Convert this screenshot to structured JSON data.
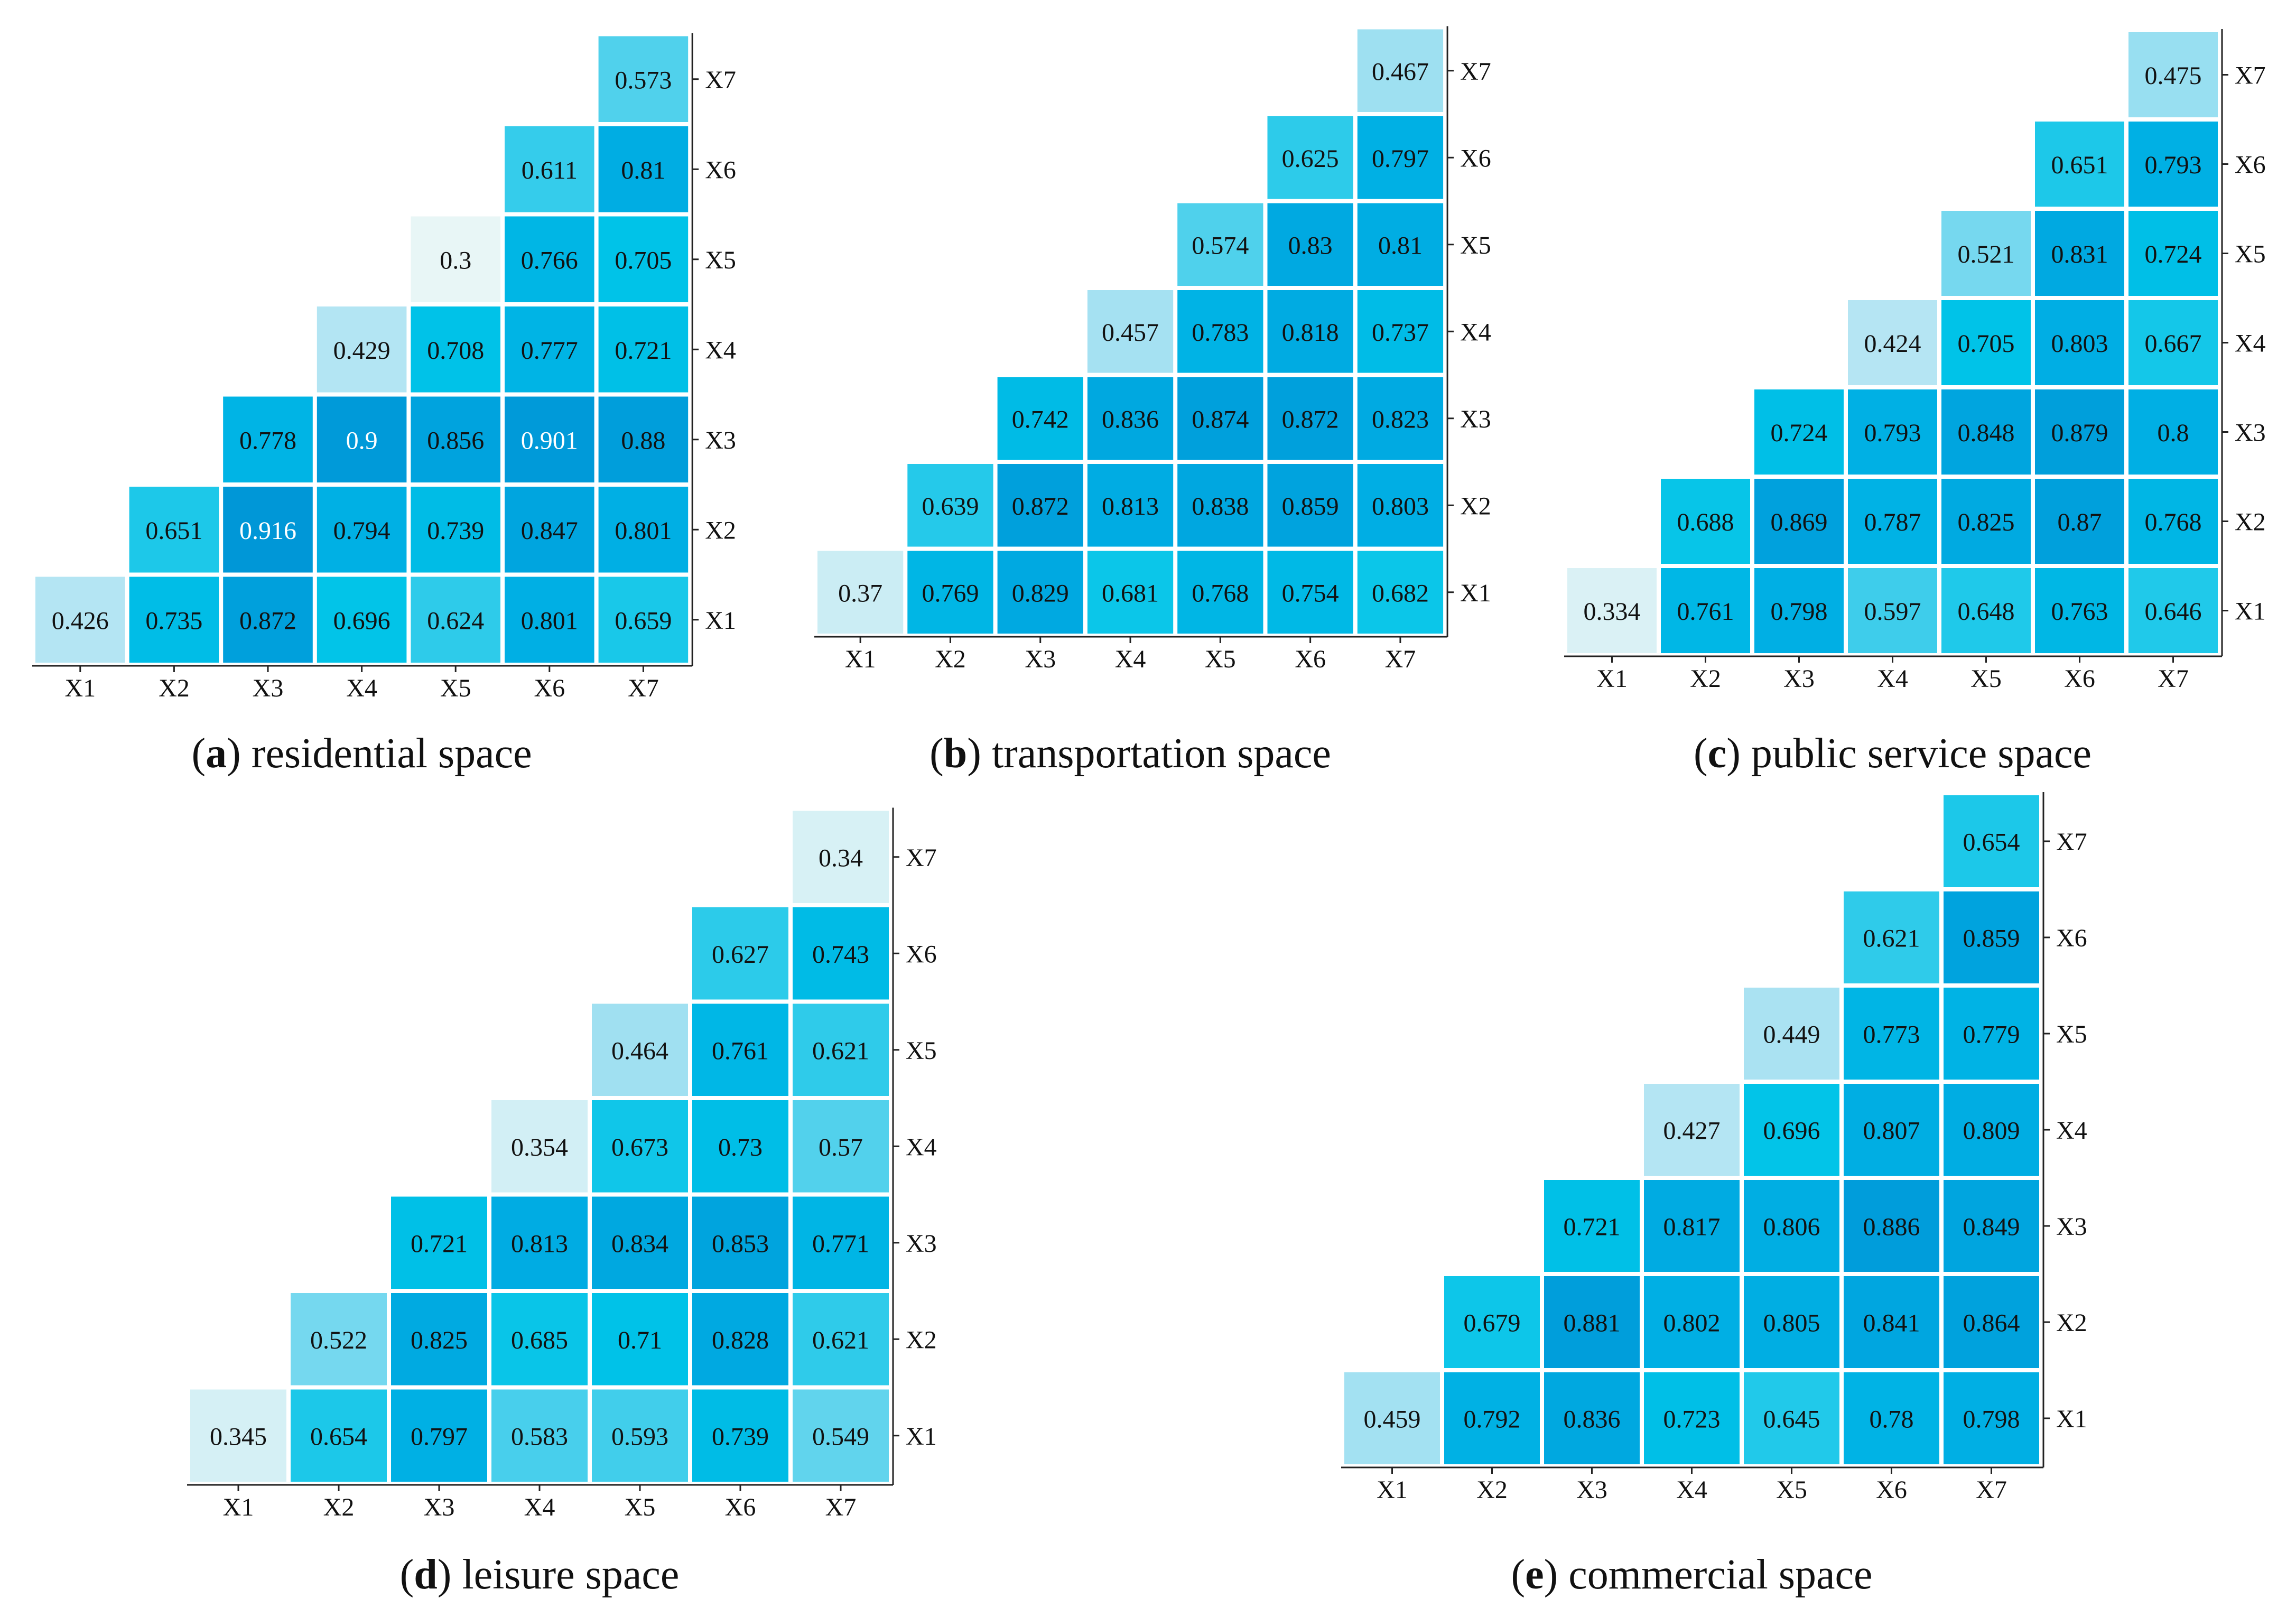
{
  "chart_data": [
    {
      "type": "heatmap",
      "caption_letter": "a",
      "title": "residential space",
      "x_labels": [
        "X1",
        "X2",
        "X3",
        "X4",
        "X5",
        "X6",
        "X7"
      ],
      "y_labels": [
        "X1",
        "X2",
        "X3",
        "X4",
        "X5",
        "X6",
        "X7"
      ],
      "rows": [
        [
          "0.426",
          "0.735",
          "0.872",
          "0.696",
          "0.624",
          "0.801",
          "0.659"
        ],
        [
          null,
          "0.651",
          "0.916",
          "0.794",
          "0.739",
          "0.847",
          "0.801"
        ],
        [
          null,
          null,
          "0.778",
          "0.9",
          "0.856",
          "0.901",
          "0.88"
        ],
        [
          null,
          null,
          null,
          "0.429",
          "0.708",
          "0.777",
          "0.721"
        ],
        [
          null,
          null,
          null,
          null,
          "0.3",
          "0.766",
          "0.705"
        ],
        [
          null,
          null,
          null,
          null,
          null,
          "0.611",
          "0.81"
        ],
        [
          null,
          null,
          null,
          null,
          null,
          null,
          "0.573"
        ]
      ]
    },
    {
      "type": "heatmap",
      "caption_letter": "b",
      "title": "transportation space",
      "x_labels": [
        "X1",
        "X2",
        "X3",
        "X4",
        "X5",
        "X6",
        "X7"
      ],
      "y_labels": [
        "X1",
        "X2",
        "X3",
        "X4",
        "X5",
        "X6",
        "X7"
      ],
      "rows": [
        [
          "0.37",
          "0.769",
          "0.829",
          "0.681",
          "0.768",
          "0.754",
          "0.682"
        ],
        [
          null,
          "0.639",
          "0.872",
          "0.813",
          "0.838",
          "0.859",
          "0.803"
        ],
        [
          null,
          null,
          "0.742",
          "0.836",
          "0.874",
          "0.872",
          "0.823"
        ],
        [
          null,
          null,
          null,
          "0.457",
          "0.783",
          "0.818",
          "0.737"
        ],
        [
          null,
          null,
          null,
          null,
          "0.574",
          "0.83",
          "0.81"
        ],
        [
          null,
          null,
          null,
          null,
          null,
          "0.625",
          "0.797"
        ],
        [
          null,
          null,
          null,
          null,
          null,
          null,
          "0.467"
        ]
      ]
    },
    {
      "type": "heatmap",
      "caption_letter": "c",
      "title": "public service space",
      "x_labels": [
        "X1",
        "X2",
        "X3",
        "X4",
        "X5",
        "X6",
        "X7"
      ],
      "y_labels": [
        "X1",
        "X2",
        "X3",
        "X4",
        "X5",
        "X6",
        "X7"
      ],
      "rows": [
        [
          "0.334",
          "0.761",
          "0.798",
          "0.597",
          "0.648",
          "0.763",
          "0.646"
        ],
        [
          null,
          "0.688",
          "0.869",
          "0.787",
          "0.825",
          "0.87",
          "0.768"
        ],
        [
          null,
          null,
          "0.724",
          "0.793",
          "0.848",
          "0.879",
          "0.8"
        ],
        [
          null,
          null,
          null,
          "0.424",
          "0.705",
          "0.803",
          "0.667"
        ],
        [
          null,
          null,
          null,
          null,
          "0.521",
          "0.831",
          "0.724"
        ],
        [
          null,
          null,
          null,
          null,
          null,
          "0.651",
          "0.793"
        ],
        [
          null,
          null,
          null,
          null,
          null,
          null,
          "0.475"
        ]
      ]
    },
    {
      "type": "heatmap",
      "caption_letter": "d",
      "title": "leisure space",
      "x_labels": [
        "X1",
        "X2",
        "X3",
        "X4",
        "X5",
        "X6",
        "X7"
      ],
      "y_labels": [
        "X1",
        "X2",
        "X3",
        "X4",
        "X5",
        "X6",
        "X7"
      ],
      "rows": [
        [
          "0.345",
          "0.654",
          "0.797",
          "0.583",
          "0.593",
          "0.739",
          "0.549"
        ],
        [
          null,
          "0.522",
          "0.825",
          "0.685",
          "0.71",
          "0.828",
          "0.621"
        ],
        [
          null,
          null,
          "0.721",
          "0.813",
          "0.834",
          "0.853",
          "0.771"
        ],
        [
          null,
          null,
          null,
          "0.354",
          "0.673",
          "0.73",
          "0.57"
        ],
        [
          null,
          null,
          null,
          null,
          "0.464",
          "0.761",
          "0.621"
        ],
        [
          null,
          null,
          null,
          null,
          null,
          "0.627",
          "0.743"
        ],
        [
          null,
          null,
          null,
          null,
          null,
          null,
          "0.34"
        ]
      ]
    },
    {
      "type": "heatmap",
      "caption_letter": "e",
      "title": "commercial space",
      "x_labels": [
        "X1",
        "X2",
        "X3",
        "X4",
        "X5",
        "X6",
        "X7"
      ],
      "y_labels": [
        "X1",
        "X2",
        "X3",
        "X4",
        "X5",
        "X6",
        "X7"
      ],
      "rows": [
        [
          "0.459",
          "0.792",
          "0.836",
          "0.723",
          "0.645",
          "0.78",
          "0.798"
        ],
        [
          null,
          "0.679",
          "0.881",
          "0.802",
          "0.805",
          "0.841",
          "0.864"
        ],
        [
          null,
          null,
          "0.721",
          "0.817",
          "0.806",
          "0.886",
          "0.849"
        ],
        [
          null,
          null,
          null,
          "0.427",
          "0.696",
          "0.807",
          "0.809"
        ],
        [
          null,
          null,
          null,
          null,
          "0.449",
          "0.773",
          "0.779"
        ],
        [
          null,
          null,
          null,
          null,
          null,
          "0.621",
          "0.859"
        ],
        [
          null,
          null,
          null,
          null,
          null,
          null,
          "0.654"
        ]
      ]
    }
  ]
}
